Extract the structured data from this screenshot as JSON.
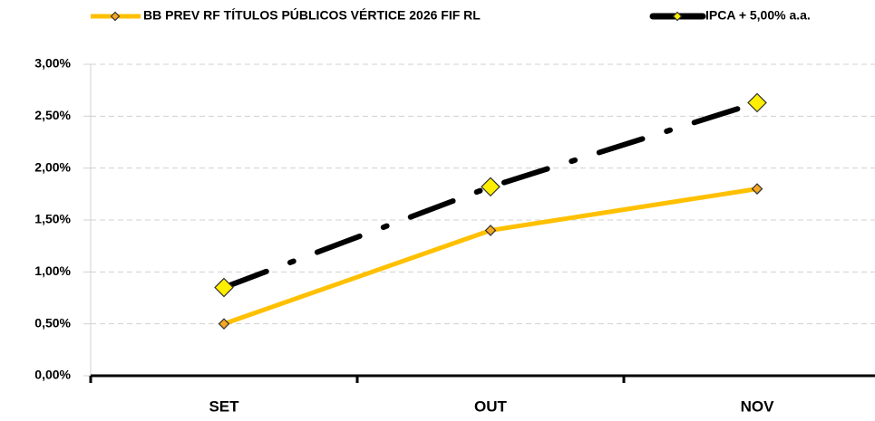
{
  "chart_data": {
    "type": "line",
    "categories": [
      "SET",
      "OUT",
      "NOV"
    ],
    "series": [
      {
        "name": "BB PREV RF TÍTULOS PÚBLICOS VÉRTICE 2026 FIF RL",
        "color": "#ffc000",
        "marker_color": "#f5a623",
        "dash": "solid",
        "values": [
          0.5,
          1.4,
          1.8
        ]
      },
      {
        "name": "IPCA + 5,00% a.a.",
        "color": "#000000",
        "marker_color": "#ffee00",
        "dash": "dashdot",
        "values": [
          0.85,
          1.82,
          2.63
        ]
      }
    ],
    "ylim": [
      0,
      3
    ],
    "yticks": [
      {
        "value": 0,
        "label": "0,00%"
      },
      {
        "value": 0.5,
        "label": "0,50%"
      },
      {
        "value": 1,
        "label": "1,00%"
      },
      {
        "value": 1.5,
        "label": "1,50%"
      },
      {
        "value": 2,
        "label": "2,00%"
      },
      {
        "value": 2.5,
        "label": "2,50%"
      },
      {
        "value": 3,
        "label": "3,00%"
      }
    ],
    "grid": true,
    "legend": "top"
  }
}
